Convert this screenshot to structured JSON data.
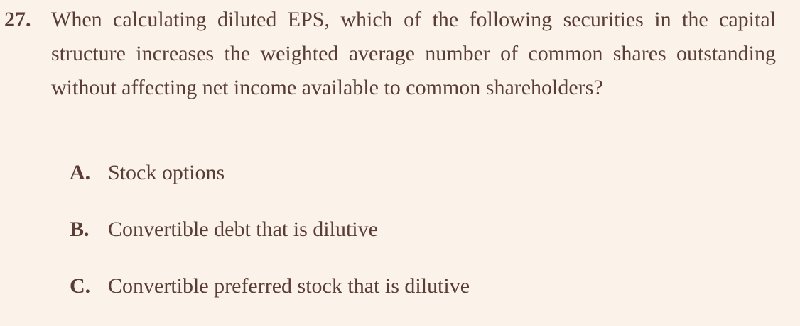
{
  "question": {
    "number": "27.",
    "text": "When calculating diluted EPS, which of the following securities in the capital structure increases the weighted average number of common shares outstanding without affecting net income available to common shareholders?"
  },
  "options": [
    {
      "letter": "A.",
      "text": "Stock options"
    },
    {
      "letter": "B.",
      "text": "Convertible debt that is dilutive"
    },
    {
      "letter": "C.",
      "text": "Convertible preferred stock that is dilutive"
    }
  ],
  "colors": {
    "background": "#fbf3ea",
    "text": "#5a3e36"
  }
}
